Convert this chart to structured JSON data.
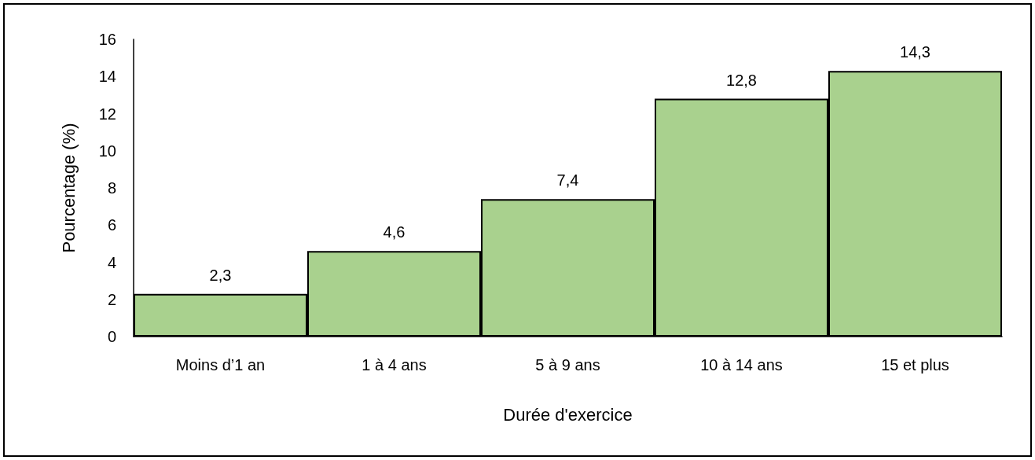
{
  "chart_data": {
    "type": "bar",
    "xlabel": "Durée d'exercice",
    "ylabel": "Pourcentage (%)",
    "categories": [
      "Moins d’1 an",
      "1 à 4 ans",
      "5 à 9 ans",
      "10 à 14 ans",
      "15 et plus"
    ],
    "values": [
      2.3,
      4.6,
      7.4,
      12.8,
      14.3
    ],
    "color": "#a9d18e",
    "ylim": [
      0,
      16
    ],
    "yticks": [
      0,
      2,
      4,
      6,
      8,
      10,
      12,
      14,
      16
    ],
    "value_labels": [
      "2,3",
      "4,6",
      "7,4",
      "12,8",
      "14,3"
    ]
  }
}
